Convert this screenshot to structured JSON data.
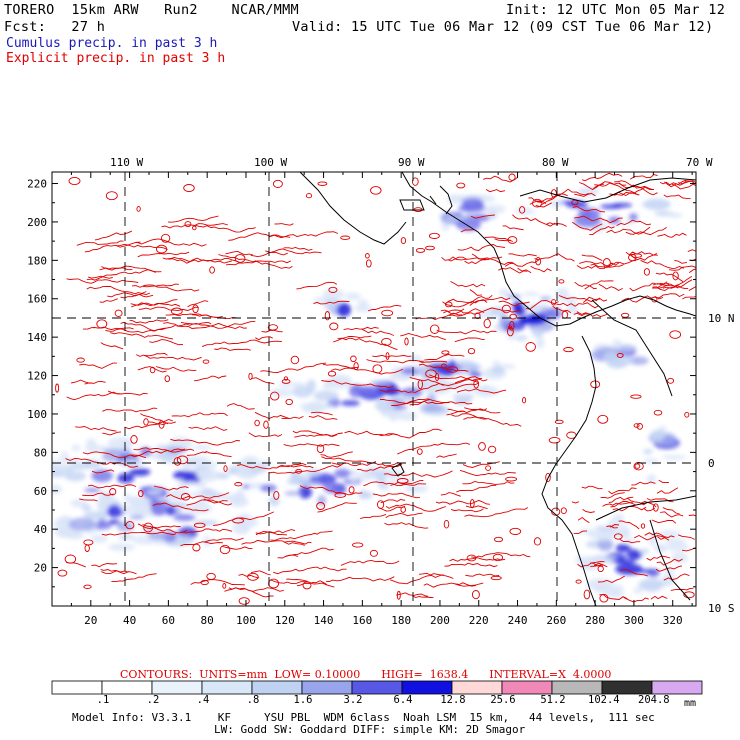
{
  "header": {
    "model": "TORERO  15km ARW   Run2    NCAR/MMM",
    "init": "Init: 12 UTC Mon 05 Mar 12",
    "fcst": "Fcst:   27 h",
    "valid": "Valid: 15 UTC Tue 06 Mar 12 (09 CST Tue 06 Mar 12)",
    "cumulus": "Cumulus precip. in past 3 h",
    "explicit": "Explicit precip. in past 3 h"
  },
  "axes": {
    "top_lon": [
      "110 W",
      "100 W",
      "90 W",
      "80 W",
      "70 W"
    ],
    "right_lat": [
      "10 N",
      "0",
      "10 S"
    ],
    "left_ticks": [
      "220",
      "200",
      "180",
      "160",
      "140",
      "120",
      "100",
      "80",
      "60",
      "40",
      "20"
    ],
    "bottom_ticks": [
      "20",
      "40",
      "60",
      "80",
      "100",
      "120",
      "140",
      "160",
      "180",
      "200",
      "220",
      "240",
      "260",
      "280",
      "300",
      "320"
    ]
  },
  "contours_line": {
    "label": "CONTOURS:  UNITS=mm  LOW= 0.10000      HIGH=  1638.4      INTERVAL=X  4.0000"
  },
  "colorbar": {
    "unit": "mm",
    "labels": [
      ".1",
      ".2",
      ".4",
      ".8",
      "1.6",
      "3.2",
      "6.4",
      "12.8",
      "25.6",
      "51.2",
      "102.4",
      "204.8"
    ],
    "colors": [
      "#ffffff",
      "#ffffff",
      "#eaf3fb",
      "#d8e8f8",
      "#c0d2f2",
      "#98a4ec",
      "#5858e6",
      "#1010e0",
      "#ffd8d8",
      "#f088b8",
      "#b8b8b8",
      "#303030",
      "#d8a8f0"
    ]
  },
  "model_info": {
    "line1": "Model Info: V3.3.1    KF     YSU PBL  WDM 6class  Noah LSM  15 km,   44 levels,  111 sec",
    "line2": "LW: Godd SW: Goddard DIFF: simple KM: 2D Smagor"
  },
  "colors": {
    "explicit_contour": "#e00000",
    "cumulus_text": "#1a1ab8",
    "coastline": "#000000"
  }
}
